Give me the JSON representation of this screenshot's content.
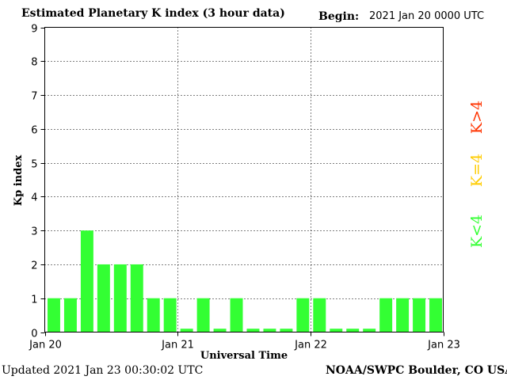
{
  "header": {
    "title": "Estimated Planetary K index (3 hour data)",
    "begin_label": "Begin:",
    "begin_value": "2021 Jan 20 0000 UTC"
  },
  "footer": {
    "updated": "Updated 2021 Jan 23 00:30:02 UTC",
    "credit": "NOAA/SWPC Boulder, CO USA"
  },
  "legend": {
    "high": "K>4",
    "equal": "K=4",
    "low": "K<4"
  },
  "colors": {
    "low": "#33ff33",
    "equal": "#ffcc00",
    "high": "#ff3300",
    "axis": "#000000"
  },
  "chart_data": {
    "type": "bar",
    "title": "Estimated Planetary K index (3 hour data)",
    "xlabel": "Universal Time",
    "ylabel": "Kp index",
    "ylim": [
      0,
      9
    ],
    "yticks": [
      0,
      1,
      2,
      3,
      4,
      5,
      6,
      7,
      8,
      9
    ],
    "x_ticks": [
      "Jan 20",
      "Jan 21",
      "Jan 22",
      "Jan 23"
    ],
    "interval_hours": 3,
    "values": [
      1,
      1,
      3,
      2,
      2,
      2,
      1,
      1,
      0.1,
      1,
      0.1,
      1,
      0.1,
      0.1,
      0.1,
      1,
      1,
      0.1,
      0.1,
      0.1,
      1,
      1,
      1,
      1
    ],
    "grid": true
  }
}
